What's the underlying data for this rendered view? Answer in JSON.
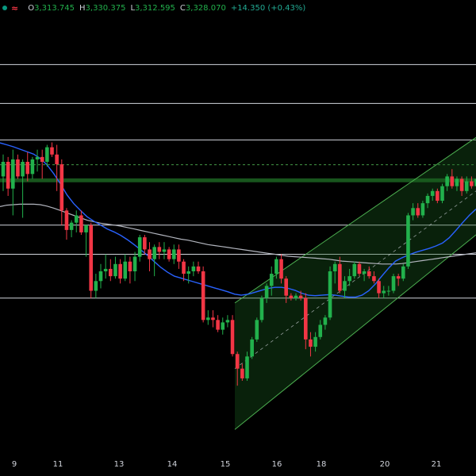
{
  "legend": {
    "approx_symbol": "≈",
    "open_prefix": "O",
    "open_value": "3,313.745",
    "high_prefix": "H",
    "high_value": "3,330.375",
    "low_prefix": "L",
    "low_value": "3,312.595",
    "close_prefix": "C",
    "close_value": "3,328.070",
    "change": "+14.350 (+0.43%)",
    "dot_color": "#089981"
  },
  "colors": {
    "background": "#000000",
    "up": "#22b14c",
    "down": "#f23645",
    "ma_fast": "#2962ff",
    "ma_slow": "#b2b5be",
    "level": "#d1d4dc",
    "channel": "#4caf50",
    "zone": "#1b5e20",
    "axis_text": "#d1d4dc"
  },
  "chart_data": {
    "type": "candlestick",
    "x_labels": [
      "9",
      "11",
      "13",
      "14",
      "15",
      "16",
      "18",
      "20",
      "21"
    ],
    "ylim": [
      3265,
      3355
    ],
    "horizontal_levels": [
      3345.0,
      3337.0,
      3329.5,
      3312.0,
      3306.0,
      3297.0
    ],
    "highlight_zone": [
      3320.8,
      3321.6
    ],
    "dashed_level": 3324.4,
    "candles": [
      [
        3322.0,
        3326.5,
        3319.0,
        3325.0
      ],
      [
        3325.0,
        3326.0,
        3318.0,
        3319.5
      ],
      [
        3319.5,
        3327.5,
        3314.0,
        3325.5
      ],
      [
        3325.5,
        3326.5,
        3321.5,
        3322.0
      ],
      [
        3322.0,
        3325.5,
        3313.5,
        3325.0
      ],
      [
        3325.0,
        3327.0,
        3321.0,
        3322.5
      ],
      [
        3322.5,
        3326.0,
        3321.5,
        3325.5
      ],
      [
        3325.5,
        3327.5,
        3323.0,
        3326.0
      ],
      [
        3326.0,
        3327.5,
        3321.5,
        3325.0
      ],
      [
        3325.0,
        3328.5,
        3324.0,
        3328.0
      ],
      [
        3328.0,
        3329.0,
        3326.0,
        3326.5
      ],
      [
        3326.5,
        3328.5,
        3319.0,
        3324.5
      ],
      [
        3324.5,
        3325.5,
        3312.0,
        3315.0
      ],
      [
        3315.0,
        3315.5,
        3309.0,
        3311.0
      ],
      [
        3311.0,
        3313.0,
        3309.5,
        3312.5
      ],
      [
        3312.5,
        3315.0,
        3310.5,
        3314.0
      ],
      [
        3314.0,
        3315.0,
        3310.0,
        3310.5
      ],
      [
        3310.5,
        3312.0,
        3305.5,
        3312.0
      ],
      [
        3312.0,
        3312.5,
        3297.0,
        3298.5
      ],
      [
        3298.5,
        3302.0,
        3297.0,
        3300.5
      ],
      [
        3300.5,
        3304.0,
        3299.0,
        3302.5
      ],
      [
        3302.5,
        3306.0,
        3301.0,
        3303.0
      ],
      [
        3303.0,
        3305.0,
        3300.5,
        3301.5
      ],
      [
        3301.5,
        3305.5,
        3301.0,
        3304.0
      ],
      [
        3304.0,
        3305.0,
        3300.0,
        3301.0
      ],
      [
        3301.0,
        3306.0,
        3300.5,
        3304.5
      ],
      [
        3304.5,
        3305.5,
        3300.0,
        3302.5
      ],
      [
        3302.5,
        3306.5,
        3300.5,
        3305.5
      ],
      [
        3305.5,
        3310.0,
        3304.5,
        3309.5
      ],
      [
        3309.5,
        3310.0,
        3306.0,
        3307.0
      ],
      [
        3307.0,
        3308.5,
        3302.5,
        3305.0
      ],
      [
        3305.0,
        3308.0,
        3301.5,
        3307.5
      ],
      [
        3307.5,
        3308.5,
        3305.0,
        3306.5
      ],
      [
        3306.5,
        3308.5,
        3305.0,
        3307.0
      ],
      [
        3307.0,
        3307.5,
        3304.5,
        3305.0
      ],
      [
        3305.0,
        3308.0,
        3304.0,
        3307.0
      ],
      [
        3307.0,
        3308.0,
        3303.0,
        3304.5
      ],
      [
        3304.5,
        3305.0,
        3300.5,
        3302.0
      ],
      [
        3302.0,
        3303.5,
        3300.0,
        3302.5
      ],
      [
        3302.5,
        3304.5,
        3301.5,
        3303.5
      ],
      [
        3303.5,
        3304.5,
        3302.0,
        3302.5
      ],
      [
        3302.5,
        3303.5,
        3292.0,
        3292.5
      ],
      [
        3292.5,
        3294.5,
        3291.5,
        3293.0
      ],
      [
        3293.0,
        3294.5,
        3291.0,
        3292.5
      ],
      [
        3292.5,
        3293.5,
        3290.0,
        3290.5
      ],
      [
        3290.5,
        3293.0,
        3289.5,
        3292.0
      ],
      [
        3292.0,
        3293.5,
        3291.0,
        3292.5
      ],
      [
        3292.5,
        3293.5,
        3285.0,
        3285.5
      ],
      [
        3285.5,
        3286.0,
        3279.0,
        3282.5
      ],
      [
        3282.5,
        3283.5,
        3280.0,
        3280.5
      ],
      [
        3280.5,
        3286.0,
        3280.0,
        3285.0
      ],
      [
        3285.0,
        3289.0,
        3284.5,
        3288.5
      ],
      [
        3288.5,
        3293.0,
        3288.0,
        3292.5
      ],
      [
        3292.5,
        3297.5,
        3292.0,
        3297.0
      ],
      [
        3297.0,
        3300.0,
        3296.0,
        3299.5
      ],
      [
        3299.5,
        3303.5,
        3297.5,
        3302.0
      ],
      [
        3302.0,
        3305.5,
        3301.0,
        3305.0
      ],
      [
        3305.0,
        3306.0,
        3300.0,
        3301.0
      ],
      [
        3301.0,
        3301.5,
        3296.0,
        3297.5
      ],
      [
        3297.5,
        3298.0,
        3296.5,
        3297.0
      ],
      [
        3297.0,
        3298.0,
        3296.5,
        3297.5
      ],
      [
        3297.5,
        3298.5,
        3296.5,
        3297.0
      ],
      [
        3297.0,
        3298.0,
        3286.5,
        3288.5
      ],
      [
        3288.5,
        3290.0,
        3285.0,
        3287.0
      ],
      [
        3287.0,
        3290.0,
        3286.0,
        3289.0
      ],
      [
        3289.0,
        3292.5,
        3288.5,
        3291.5
      ],
      [
        3291.5,
        3293.5,
        3290.5,
        3293.0
      ],
      [
        3293.0,
        3303.5,
        3292.5,
        3302.5
      ],
      [
        3302.5,
        3304.5,
        3300.0,
        3304.0
      ],
      [
        3304.0,
        3305.5,
        3298.0,
        3298.5
      ],
      [
        3298.5,
        3301.5,
        3297.0,
        3300.5
      ],
      [
        3300.5,
        3303.0,
        3299.5,
        3301.5
      ],
      [
        3301.5,
        3304.5,
        3301.0,
        3304.0
      ],
      [
        3304.0,
        3304.5,
        3301.5,
        3302.0
      ],
      [
        3302.0,
        3303.0,
        3300.5,
        3302.5
      ],
      [
        3302.5,
        3303.5,
        3301.0,
        3301.5
      ],
      [
        3301.5,
        3302.5,
        3300.0,
        3300.5
      ],
      [
        3300.5,
        3301.0,
        3297.0,
        3298.0
      ],
      [
        3298.0,
        3299.5,
        3297.0,
        3298.5
      ],
      [
        3298.5,
        3299.5,
        3297.5,
        3298.5
      ],
      [
        3298.5,
        3302.0,
        3298.0,
        3301.5
      ],
      [
        3301.5,
        3302.0,
        3299.5,
        3301.0
      ],
      [
        3301.0,
        3304.0,
        3300.5,
        3303.5
      ],
      [
        3303.5,
        3314.5,
        3303.0,
        3314.0
      ],
      [
        3314.0,
        3316.5,
        3313.0,
        3315.5
      ],
      [
        3315.5,
        3316.5,
        3313.5,
        3314.0
      ],
      [
        3314.0,
        3317.0,
        3313.5,
        3316.5
      ],
      [
        3316.5,
        3318.5,
        3315.5,
        3318.0
      ],
      [
        3318.0,
        3319.5,
        3317.0,
        3319.0
      ],
      [
        3319.0,
        3319.5,
        3316.5,
        3317.0
      ],
      [
        3317.0,
        3320.5,
        3316.5,
        3320.0
      ],
      [
        3320.0,
        3322.5,
        3319.0,
        3322.0
      ],
      [
        3322.0,
        3323.5,
        3319.5,
        3320.0
      ],
      [
        3320.0,
        3322.0,
        3319.0,
        3321.5
      ],
      [
        3321.5,
        3322.0,
        3318.0,
        3319.0
      ],
      [
        3319.0,
        3322.0,
        3318.5,
        3321.0
      ],
      [
        3321.0,
        3322.0,
        3319.5,
        3320.0
      ],
      [
        3320.0,
        3322.0,
        3319.5,
        3321.5
      ],
      [
        3321.5,
        3324.5,
        3321.0,
        3324.0
      ]
    ],
    "ma_fast": [
      3328.9,
      3328.5,
      3328.1,
      3327.6,
      3327.1,
      3326.6,
      3325.7,
      3324.4,
      3322.6,
      3320.5,
      3318.2,
      3316.4,
      3315.0,
      3313.7,
      3312.8,
      3312.0,
      3311.2,
      3310.6,
      3309.9,
      3309.0,
      3308.0,
      3306.9,
      3305.8,
      3304.5,
      3303.3,
      3302.3,
      3301.5,
      3301.1,
      3300.7,
      3300.3,
      3299.9,
      3299.5,
      3299.1,
      3298.7,
      3298.3,
      3297.8,
      3297.6,
      3297.8,
      3298.2,
      3298.6,
      3299.0,
      3299.2,
      3299.2,
      3299.0,
      3298.6,
      3298.0,
      3297.6,
      3297.5,
      3297.6,
      3297.7,
      3297.6,
      3297.4,
      3297.2,
      3297.2,
      3297.6,
      3298.5,
      3299.9,
      3301.6,
      3303.2,
      3304.6,
      3305.3,
      3305.9,
      3306.4,
      3306.8,
      3307.2,
      3307.7,
      3308.3,
      3309.4,
      3310.9,
      3312.5,
      3314.0,
      3315.3
    ],
    "ma_slow": [
      3315.8,
      3316.1,
      3316.2,
      3316.3,
      3316.3,
      3316.3,
      3316.2,
      3315.9,
      3315.5,
      3315.0,
      3314.5,
      3314.0,
      3313.5,
      3313.0,
      3312.7,
      3312.4,
      3312.2,
      3312.0,
      3311.8,
      3311.5,
      3311.2,
      3310.9,
      3310.6,
      3310.3,
      3310.0,
      3309.7,
      3309.4,
      3309.1,
      3308.9,
      3308.6,
      3308.3,
      3308.0,
      3307.8,
      3307.6,
      3307.4,
      3307.2,
      3307.0,
      3306.8,
      3306.6,
      3306.4,
      3306.2,
      3306.0,
      3305.8,
      3305.6,
      3305.5,
      3305.4,
      3305.3,
      3305.2,
      3305.1,
      3305.0,
      3304.8,
      3304.6,
      3304.5,
      3304.4,
      3304.3,
      3304.2,
      3304.1,
      3304.0,
      3304.0,
      3304.0,
      3304.1,
      3304.3,
      3304.5,
      3304.7,
      3304.9,
      3305.1,
      3305.3,
      3305.5,
      3305.7,
      3305.9,
      3306.1,
      3306.3
    ],
    "channel": {
      "start_x_label": "15",
      "end_x_label": "21",
      "upper_start": 3296.0,
      "upper_end": 3330.0,
      "mid_start": 3282.5,
      "mid_end": 3319.0,
      "lower_start": 3270.0,
      "lower_end": 3310.0
    }
  }
}
